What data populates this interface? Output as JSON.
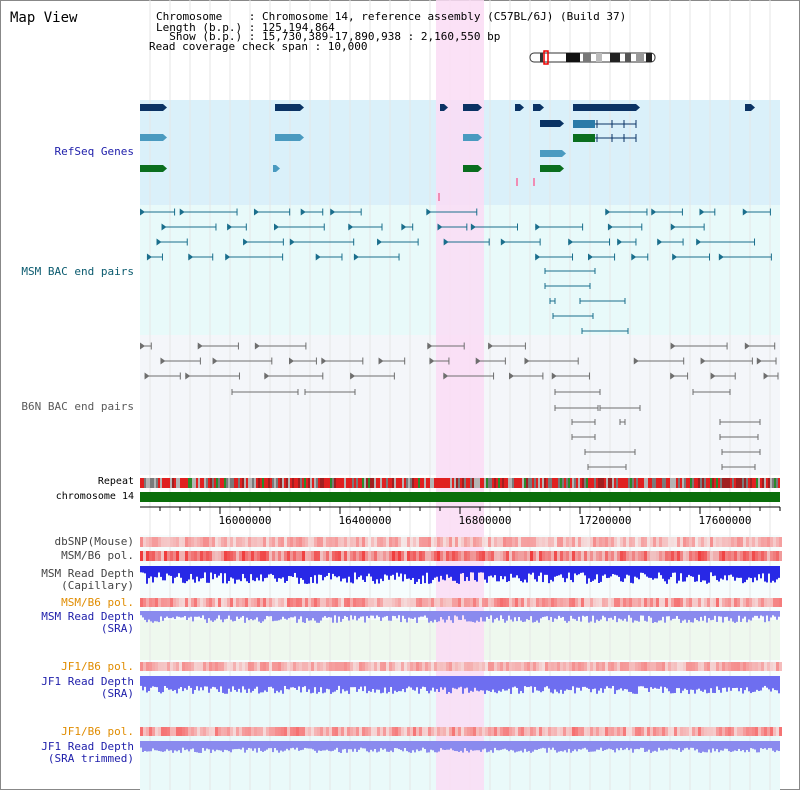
{
  "view": {
    "title": "Map View",
    "header": {
      "chromosome_line": "Chromosome    : Chromosome 14, reference assembly (C57BL/6J) (Build 37)",
      "length_line": "Length (b.p.) : 125,194,864",
      "show_line": "  Show (b.p.) : 15,730,389-17,890,938 : 2,160,550 bp",
      "coverage_line": "Read coverage check span : 10,000"
    }
  },
  "tracks": {
    "refseq": "RefSeq Genes",
    "msm_bac": "MSM BAC end pairs",
    "b6n_bac": "B6N BAC end pairs",
    "repeat": "Repeat",
    "chromosome": "chromosome 14",
    "dbsnp": "dbSNP(Mouse)",
    "msm_b6_pol_1": "MSM/B6 pol.",
    "msm_read_depth_cap": "MSM Read Depth\n(Capillary)",
    "msm_b6_pol_2": "MSM/B6 pol.",
    "msm_read_depth_sra": "MSM Read Depth\n(SRA)",
    "jf1_b6_pol_1": "JF1/B6 pol.",
    "jf1_read_depth_sra": "JF1 Read Depth\n(SRA)",
    "jf1_b6_pol_2": "JF1/B6 pol.",
    "jf1_read_depth_trim": "JF1 Read Depth\n(SRA trimmed)"
  },
  "axis": {
    "ticks": [
      "16000000",
      "16400000",
      "16800000",
      "17200000",
      "17600000"
    ]
  },
  "colors": {
    "highlight": "#fadcf5",
    "refseq_bg": "#daf0fa",
    "msm_bg": "#e8fafa",
    "b6n_bg": "#f4f6fa",
    "gene_dark": "#0a3264",
    "gene_mid": "#2a7aa8",
    "gene_light": "#4a9ac0",
    "gene_green": "#0a6e1e",
    "label_blue": "#1e1eaa",
    "label_teal": "#0a5a6e",
    "label_gray": "#5a5a5a",
    "label_orange": "#e08c00"
  }
}
